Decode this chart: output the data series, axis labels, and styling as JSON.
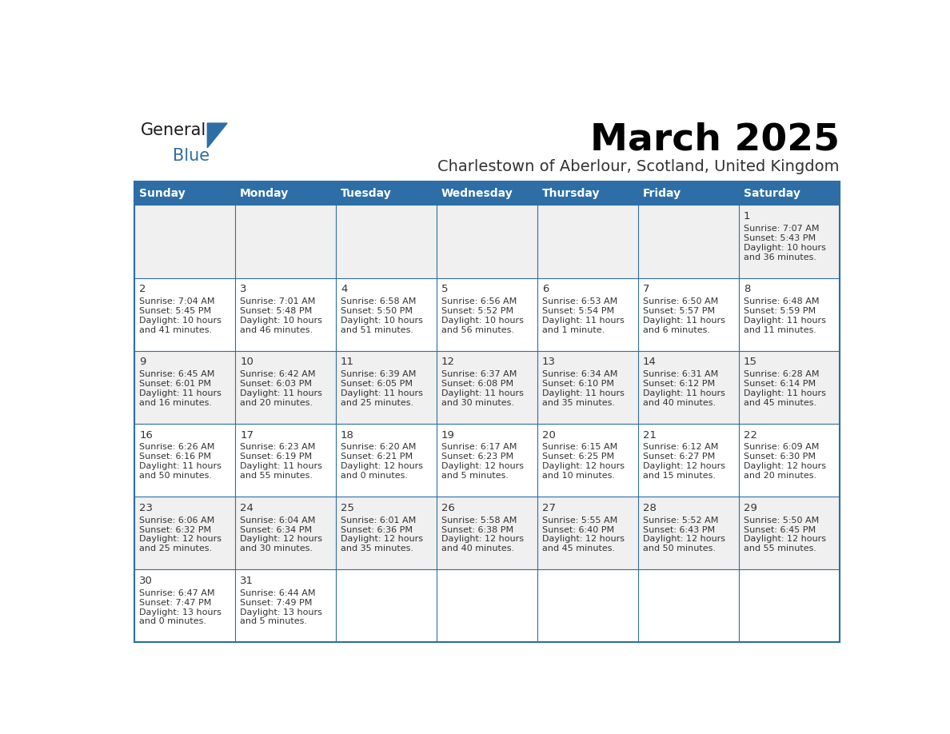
{
  "title": "March 2025",
  "subtitle": "Charlestown of Aberlour, Scotland, United Kingdom",
  "header_bg": "#2E6EA6",
  "header_text": "#FFFFFF",
  "day_names": [
    "Sunday",
    "Monday",
    "Tuesday",
    "Wednesday",
    "Thursday",
    "Friday",
    "Saturday"
  ],
  "cell_bg_odd": "#F0F0F0",
  "cell_bg_even": "#FFFFFF",
  "cell_border": "#2E6EA6",
  "text_color": "#333333",
  "logo_general_color": "#1A1A1A",
  "logo_blue_color": "#2E6EA6",
  "days": [
    {
      "date": 1,
      "col": 6,
      "row": 0,
      "sunrise": "7:07 AM",
      "sunset": "5:43 PM",
      "daylight": "10 hours",
      "daylight2": "and 36 minutes."
    },
    {
      "date": 2,
      "col": 0,
      "row": 1,
      "sunrise": "7:04 AM",
      "sunset": "5:45 PM",
      "daylight": "10 hours",
      "daylight2": "and 41 minutes."
    },
    {
      "date": 3,
      "col": 1,
      "row": 1,
      "sunrise": "7:01 AM",
      "sunset": "5:48 PM",
      "daylight": "10 hours",
      "daylight2": "and 46 minutes."
    },
    {
      "date": 4,
      "col": 2,
      "row": 1,
      "sunrise": "6:58 AM",
      "sunset": "5:50 PM",
      "daylight": "10 hours",
      "daylight2": "and 51 minutes."
    },
    {
      "date": 5,
      "col": 3,
      "row": 1,
      "sunrise": "6:56 AM",
      "sunset": "5:52 PM",
      "daylight": "10 hours",
      "daylight2": "and 56 minutes."
    },
    {
      "date": 6,
      "col": 4,
      "row": 1,
      "sunrise": "6:53 AM",
      "sunset": "5:54 PM",
      "daylight": "11 hours",
      "daylight2": "and 1 minute."
    },
    {
      "date": 7,
      "col": 5,
      "row": 1,
      "sunrise": "6:50 AM",
      "sunset": "5:57 PM",
      "daylight": "11 hours",
      "daylight2": "and 6 minutes."
    },
    {
      "date": 8,
      "col": 6,
      "row": 1,
      "sunrise": "6:48 AM",
      "sunset": "5:59 PM",
      "daylight": "11 hours",
      "daylight2": "and 11 minutes."
    },
    {
      "date": 9,
      "col": 0,
      "row": 2,
      "sunrise": "6:45 AM",
      "sunset": "6:01 PM",
      "daylight": "11 hours",
      "daylight2": "and 16 minutes."
    },
    {
      "date": 10,
      "col": 1,
      "row": 2,
      "sunrise": "6:42 AM",
      "sunset": "6:03 PM",
      "daylight": "11 hours",
      "daylight2": "and 20 minutes."
    },
    {
      "date": 11,
      "col": 2,
      "row": 2,
      "sunrise": "6:39 AM",
      "sunset": "6:05 PM",
      "daylight": "11 hours",
      "daylight2": "and 25 minutes."
    },
    {
      "date": 12,
      "col": 3,
      "row": 2,
      "sunrise": "6:37 AM",
      "sunset": "6:08 PM",
      "daylight": "11 hours",
      "daylight2": "and 30 minutes."
    },
    {
      "date": 13,
      "col": 4,
      "row": 2,
      "sunrise": "6:34 AM",
      "sunset": "6:10 PM",
      "daylight": "11 hours",
      "daylight2": "and 35 minutes."
    },
    {
      "date": 14,
      "col": 5,
      "row": 2,
      "sunrise": "6:31 AM",
      "sunset": "6:12 PM",
      "daylight": "11 hours",
      "daylight2": "and 40 minutes."
    },
    {
      "date": 15,
      "col": 6,
      "row": 2,
      "sunrise": "6:28 AM",
      "sunset": "6:14 PM",
      "daylight": "11 hours",
      "daylight2": "and 45 minutes."
    },
    {
      "date": 16,
      "col": 0,
      "row": 3,
      "sunrise": "6:26 AM",
      "sunset": "6:16 PM",
      "daylight": "11 hours",
      "daylight2": "and 50 minutes."
    },
    {
      "date": 17,
      "col": 1,
      "row": 3,
      "sunrise": "6:23 AM",
      "sunset": "6:19 PM",
      "daylight": "11 hours",
      "daylight2": "and 55 minutes."
    },
    {
      "date": 18,
      "col": 2,
      "row": 3,
      "sunrise": "6:20 AM",
      "sunset": "6:21 PM",
      "daylight": "12 hours",
      "daylight2": "and 0 minutes."
    },
    {
      "date": 19,
      "col": 3,
      "row": 3,
      "sunrise": "6:17 AM",
      "sunset": "6:23 PM",
      "daylight": "12 hours",
      "daylight2": "and 5 minutes."
    },
    {
      "date": 20,
      "col": 4,
      "row": 3,
      "sunrise": "6:15 AM",
      "sunset": "6:25 PM",
      "daylight": "12 hours",
      "daylight2": "and 10 minutes."
    },
    {
      "date": 21,
      "col": 5,
      "row": 3,
      "sunrise": "6:12 AM",
      "sunset": "6:27 PM",
      "daylight": "12 hours",
      "daylight2": "and 15 minutes."
    },
    {
      "date": 22,
      "col": 6,
      "row": 3,
      "sunrise": "6:09 AM",
      "sunset": "6:30 PM",
      "daylight": "12 hours",
      "daylight2": "and 20 minutes."
    },
    {
      "date": 23,
      "col": 0,
      "row": 4,
      "sunrise": "6:06 AM",
      "sunset": "6:32 PM",
      "daylight": "12 hours",
      "daylight2": "and 25 minutes."
    },
    {
      "date": 24,
      "col": 1,
      "row": 4,
      "sunrise": "6:04 AM",
      "sunset": "6:34 PM",
      "daylight": "12 hours",
      "daylight2": "and 30 minutes."
    },
    {
      "date": 25,
      "col": 2,
      "row": 4,
      "sunrise": "6:01 AM",
      "sunset": "6:36 PM",
      "daylight": "12 hours",
      "daylight2": "and 35 minutes."
    },
    {
      "date": 26,
      "col": 3,
      "row": 4,
      "sunrise": "5:58 AM",
      "sunset": "6:38 PM",
      "daylight": "12 hours",
      "daylight2": "and 40 minutes."
    },
    {
      "date": 27,
      "col": 4,
      "row": 4,
      "sunrise": "5:55 AM",
      "sunset": "6:40 PM",
      "daylight": "12 hours",
      "daylight2": "and 45 minutes."
    },
    {
      "date": 28,
      "col": 5,
      "row": 4,
      "sunrise": "5:52 AM",
      "sunset": "6:43 PM",
      "daylight": "12 hours",
      "daylight2": "and 50 minutes."
    },
    {
      "date": 29,
      "col": 6,
      "row": 4,
      "sunrise": "5:50 AM",
      "sunset": "6:45 PM",
      "daylight": "12 hours",
      "daylight2": "and 55 minutes."
    },
    {
      "date": 30,
      "col": 0,
      "row": 5,
      "sunrise": "6:47 AM",
      "sunset": "7:47 PM",
      "daylight": "13 hours",
      "daylight2": "and 0 minutes."
    },
    {
      "date": 31,
      "col": 1,
      "row": 5,
      "sunrise": "6:44 AM",
      "sunset": "7:49 PM",
      "daylight": "13 hours",
      "daylight2": "and 5 minutes."
    }
  ]
}
